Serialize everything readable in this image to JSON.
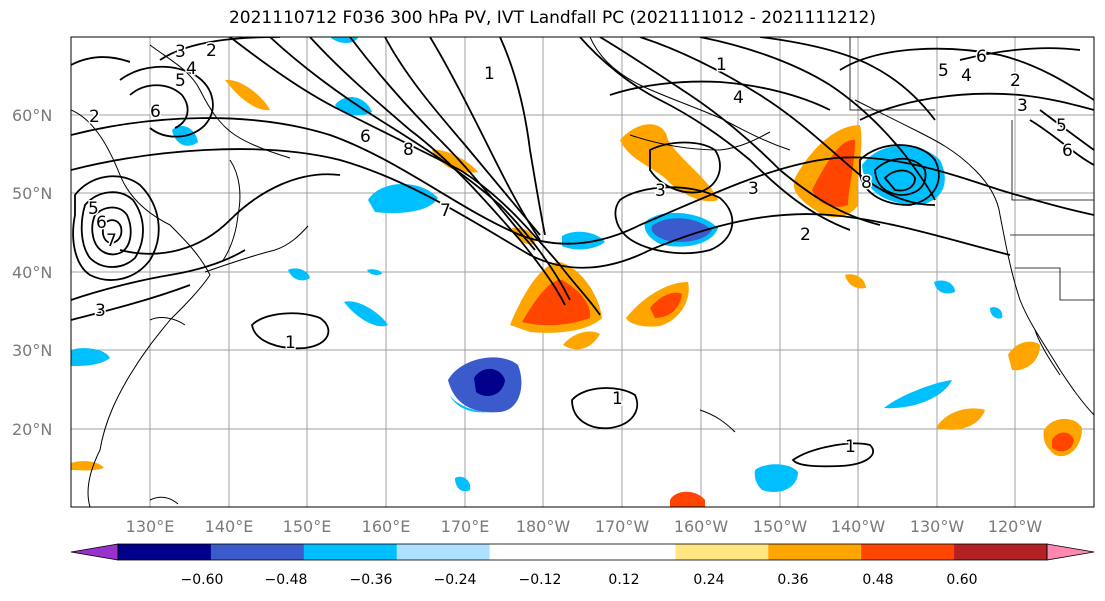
{
  "title": "2021110712 F036 300 hPa PV, IVT Landfall PC (2021111012 - 2021111212)",
  "lat_labels": [
    "60°N",
    "50°N",
    "40°N",
    "30°N",
    "20°N"
  ],
  "lon_labels": [
    "130°E",
    "140°E",
    "150°E",
    "160°E",
    "170°E",
    "180°W",
    "170°W",
    "160°W",
    "150°W",
    "140°W",
    "130°W",
    "120°W"
  ],
  "colorbar": {
    "colors": [
      "#9932cc",
      "#00008b",
      "#3b5bcc",
      "#00bfff",
      "#b0e0ff",
      "#ffffff",
      "#ffffff",
      "#ffe680",
      "#ffa500",
      "#ff4500",
      "#b22222",
      "#ff88b0"
    ],
    "ticks": [
      "−0.60",
      "−0.48",
      "−0.36",
      "−0.24",
      "−0.12",
      "0.12",
      "0.24",
      "0.36",
      "0.48",
      "0.60"
    ]
  },
  "contour_labels": [
    "1",
    "2",
    "3",
    "4",
    "5",
    "6",
    "7",
    "8"
  ]
}
